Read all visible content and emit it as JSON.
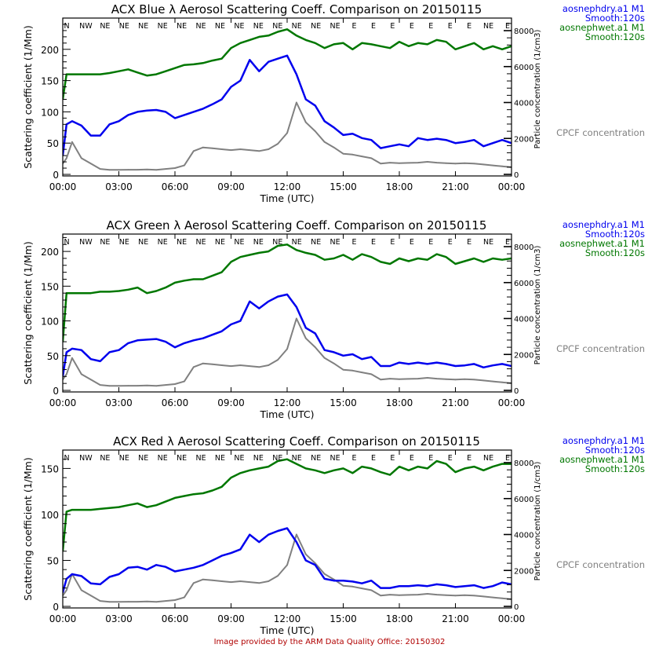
{
  "footer": "Image provided by the ARM Data Quality Office: 20150302",
  "colors": {
    "dry": "#0000ee",
    "wet": "#007700",
    "cpc": "#808080",
    "footer": "#b00000"
  },
  "chart_data": [
    {
      "type": "line",
      "title": "ACX Blue λ Aerosol Scattering Coeff. Comparison on 20150115",
      "xlabel": "Time (UTC)",
      "ylabel": "Scattering coefficient (1/Mm)",
      "y2label": "Particle concentration (1/cm3)",
      "xlim": [
        0,
        24
      ],
      "ylim": [
        0,
        250
      ],
      "y2lim": [
        0,
        8700
      ],
      "xticks": [
        "00:00",
        "03:00",
        "06:00",
        "09:00",
        "12:00",
        "15:00",
        "18:00",
        "21:00",
        "00:00"
      ],
      "yticks": [
        0,
        50,
        100,
        150,
        200
      ],
      "y2ticks": [
        0,
        2000,
        4000,
        6000,
        8000
      ],
      "wind_directions": [
        "N",
        "NW",
        "NE",
        "NE",
        "NE",
        "NE",
        "NE",
        "NE",
        "NE",
        "NE",
        "NE",
        "NE",
        "NE",
        "NE",
        "NE",
        "E",
        "E",
        "E",
        "E",
        "E",
        "E",
        "E",
        "NE",
        "E"
      ],
      "legend": [
        {
          "line1": "aosnephdry.a1 M1",
          "line2": "Smooth:120s",
          "series": "dry"
        },
        {
          "line1": "aosnephwet.a1 M1",
          "line2": "Smooth:120s",
          "series": "wet"
        },
        {
          "line1": "CPCF concentration",
          "line2": "",
          "series": "cpc"
        }
      ],
      "x": [
        0,
        0.2,
        0.5,
        1.0,
        1.5,
        2.0,
        2.5,
        3.0,
        3.5,
        4.0,
        4.5,
        5.0,
        5.5,
        6.0,
        6.5,
        7.0,
        7.5,
        8.0,
        8.5,
        9.0,
        9.5,
        10.0,
        10.5,
        11.0,
        11.5,
        12.0,
        12.5,
        13.0,
        13.5,
        14.0,
        14.5,
        15.0,
        15.5,
        16.0,
        16.5,
        17.0,
        17.5,
        18.0,
        18.5,
        19.0,
        19.5,
        20.0,
        20.5,
        21.0,
        21.5,
        22.0,
        22.5,
        23.0,
        23.5,
        24.0
      ],
      "series": [
        {
          "name": "dry",
          "label": "aosnephdry.a1 M1 Smooth:120s",
          "axis": "left",
          "values": [
            30,
            80,
            85,
            78,
            62,
            62,
            80,
            85,
            95,
            100,
            102,
            103,
            100,
            90,
            95,
            100,
            105,
            112,
            120,
            140,
            150,
            183,
            165,
            180,
            185,
            190,
            160,
            120,
            110,
            85,
            75,
            63,
            65,
            58,
            55,
            42,
            45,
            48,
            45,
            58,
            55,
            57,
            55,
            50,
            52,
            55,
            45,
            50,
            55,
            50
          ]
        },
        {
          "name": "wet",
          "label": "aosnephwet.a1 M1 Smooth:120s",
          "axis": "left",
          "values": [
            120,
            160,
            160,
            160,
            160,
            160,
            162,
            165,
            168,
            163,
            158,
            160,
            165,
            170,
            175,
            176,
            178,
            182,
            185,
            202,
            210,
            215,
            220,
            222,
            228,
            232,
            222,
            215,
            210,
            202,
            208,
            210,
            200,
            210,
            208,
            205,
            202,
            212,
            205,
            210,
            208,
            215,
            212,
            200,
            205,
            210,
            200,
            205,
            200,
            205
          ]
        },
        {
          "name": "cpc",
          "label": "CPCF concentration",
          "axis": "right",
          "values": [
            600,
            900,
            1800,
            900,
            600,
            300,
            250,
            250,
            260,
            260,
            270,
            250,
            300,
            350,
            500,
            1300,
            1500,
            1450,
            1400,
            1350,
            1400,
            1350,
            1300,
            1400,
            1700,
            2300,
            4000,
            2900,
            2400,
            1800,
            1500,
            1150,
            1100,
            1000,
            900,
            600,
            650,
            620,
            640,
            650,
            700,
            650,
            620,
            600,
            620,
            600,
            550,
            500,
            450,
            400
          ]
        }
      ]
    },
    {
      "type": "line",
      "title": "ACX Green λ Aerosol Scattering Coeff. Comparison on 20150115",
      "xlabel": "Time (UTC)",
      "ylabel": "Scattering coefficient (1/Mm)",
      "y2label": "Particle concentration (1/cm3)",
      "xlim": [
        0,
        24
      ],
      "ylim": [
        0,
        225
      ],
      "y2lim": [
        0,
        8700
      ],
      "xticks": [
        "00:00",
        "03:00",
        "06:00",
        "09:00",
        "12:00",
        "15:00",
        "18:00",
        "21:00",
        "00:00"
      ],
      "yticks": [
        0,
        50,
        100,
        150,
        200
      ],
      "y2ticks": [
        0,
        2000,
        4000,
        6000,
        8000
      ],
      "wind_directions": [
        "N",
        "NW",
        "NE",
        "NE",
        "NE",
        "NE",
        "NE",
        "NE",
        "NE",
        "NE",
        "NE",
        "NE",
        "NE",
        "NE",
        "NE",
        "E",
        "E",
        "E",
        "E",
        "E",
        "E",
        "E",
        "NE",
        "E"
      ],
      "legend": [
        {
          "line1": "aosnephdry.a1 M1",
          "line2": "Smooth:120s",
          "series": "dry"
        },
        {
          "line1": "aosnephwet.a1 M1",
          "line2": "Smooth:120s",
          "series": "wet"
        },
        {
          "line1": "CPCF concentration",
          "line2": "",
          "series": "cpc"
        }
      ],
      "x": [
        0,
        0.2,
        0.5,
        1.0,
        1.5,
        2.0,
        2.5,
        3.0,
        3.5,
        4.0,
        4.5,
        5.0,
        5.5,
        6.0,
        6.5,
        7.0,
        7.5,
        8.0,
        8.5,
        9.0,
        9.5,
        10.0,
        10.5,
        11.0,
        11.5,
        12.0,
        12.5,
        13.0,
        13.5,
        14.0,
        14.5,
        15.0,
        15.5,
        16.0,
        16.5,
        17.0,
        17.5,
        18.0,
        18.5,
        19.0,
        19.5,
        20.0,
        20.5,
        21.0,
        21.5,
        22.0,
        22.5,
        23.0,
        23.5,
        24.0
      ],
      "series": [
        {
          "name": "dry",
          "label": "aosnephdry.a1 M1 Smooth:120s",
          "axis": "left",
          "values": [
            20,
            55,
            60,
            58,
            45,
            42,
            55,
            58,
            68,
            72,
            73,
            74,
            70,
            62,
            68,
            72,
            75,
            80,
            85,
            95,
            100,
            128,
            118,
            128,
            135,
            138,
            120,
            90,
            82,
            58,
            55,
            50,
            52,
            45,
            48,
            35,
            35,
            40,
            38,
            40,
            38,
            40,
            38,
            35,
            36,
            38,
            33,
            36,
            38,
            35
          ]
        },
        {
          "name": "wet",
          "label": "aosnephwet.a1 M1 Smooth:120s",
          "axis": "left",
          "values": [
            70,
            140,
            140,
            140,
            140,
            142,
            142,
            143,
            145,
            148,
            140,
            143,
            148,
            155,
            158,
            160,
            160,
            165,
            170,
            185,
            192,
            195,
            198,
            200,
            208,
            210,
            202,
            198,
            195,
            188,
            190,
            195,
            188,
            196,
            192,
            185,
            182,
            190,
            186,
            190,
            188,
            196,
            192,
            182,
            186,
            190,
            185,
            190,
            188,
            190
          ]
        },
        {
          "name": "cpc",
          "label": "CPCF concentration",
          "axis": "right",
          "values": [
            600,
            900,
            1800,
            900,
            600,
            300,
            250,
            250,
            260,
            260,
            270,
            250,
            300,
            350,
            500,
            1300,
            1500,
            1450,
            1400,
            1350,
            1400,
            1350,
            1300,
            1400,
            1700,
            2300,
            4000,
            2900,
            2400,
            1800,
            1500,
            1150,
            1100,
            1000,
            900,
            600,
            650,
            620,
            640,
            650,
            700,
            650,
            620,
            600,
            620,
            600,
            550,
            500,
            450,
            400
          ]
        }
      ]
    },
    {
      "type": "line",
      "title": "ACX Red λ Aerosol Scattering Coeff. Comparison on 20150115",
      "xlabel": "Time (UTC)",
      "ylabel": "Scattering coefficient (1/Mm)",
      "y2label": "Particle concentration (1/cm3)",
      "xlim": [
        0,
        24
      ],
      "ylim": [
        0,
        170
      ],
      "y2lim": [
        0,
        8700
      ],
      "xticks": [
        "00:00",
        "03:00",
        "06:00",
        "09:00",
        "12:00",
        "15:00",
        "18:00",
        "21:00",
        "00:00"
      ],
      "yticks": [
        0,
        50,
        100,
        150
      ],
      "y2ticks": [
        0,
        2000,
        4000,
        6000,
        8000
      ],
      "wind_directions": [
        "N",
        "NW",
        "NE",
        "NE",
        "NE",
        "NE",
        "NE",
        "NE",
        "NE",
        "NE",
        "NE",
        "NE",
        "NE",
        "NE",
        "NE",
        "E",
        "E",
        "E",
        "E",
        "E",
        "E",
        "E",
        "NE",
        "E"
      ],
      "legend": [
        {
          "line1": "aosnephdry.a1 M1",
          "line2": "Smooth:120s",
          "series": "dry"
        },
        {
          "line1": "aosnephwet.a1 M1",
          "line2": "Smooth:120s",
          "series": "wet"
        },
        {
          "line1": "CPCF concentration",
          "line2": "",
          "series": "cpc"
        }
      ],
      "x": [
        0,
        0.2,
        0.5,
        1.0,
        1.5,
        2.0,
        2.5,
        3.0,
        3.5,
        4.0,
        4.5,
        5.0,
        5.5,
        6.0,
        6.5,
        7.0,
        7.5,
        8.0,
        8.5,
        9.0,
        9.5,
        10.0,
        10.5,
        11.0,
        11.5,
        12.0,
        12.5,
        13.0,
        13.5,
        14.0,
        14.5,
        15.0,
        15.5,
        16.0,
        16.5,
        17.0,
        17.5,
        18.0,
        18.5,
        19.0,
        19.5,
        20.0,
        20.5,
        21.0,
        21.5,
        22.0,
        22.5,
        23.0,
        23.5,
        24.0
      ],
      "series": [
        {
          "name": "dry",
          "label": "aosnephdry.a1 M1 Smooth:120s",
          "axis": "left",
          "values": [
            15,
            30,
            35,
            33,
            25,
            24,
            32,
            35,
            42,
            43,
            40,
            45,
            43,
            38,
            40,
            42,
            45,
            50,
            55,
            58,
            62,
            78,
            70,
            78,
            82,
            85,
            70,
            50,
            45,
            30,
            28,
            28,
            27,
            25,
            28,
            20,
            20,
            22,
            22,
            23,
            22,
            24,
            23,
            21,
            22,
            23,
            20,
            22,
            26,
            24
          ]
        },
        {
          "name": "wet",
          "label": "aosnephwet.a1 M1 Smooth:120s",
          "axis": "left",
          "values": [
            60,
            103,
            105,
            105,
            105,
            106,
            107,
            108,
            110,
            112,
            108,
            110,
            114,
            118,
            120,
            122,
            123,
            126,
            130,
            140,
            145,
            148,
            150,
            152,
            158,
            160,
            155,
            150,
            148,
            145,
            148,
            150,
            145,
            152,
            150,
            146,
            143,
            152,
            148,
            152,
            150,
            158,
            155,
            146,
            150,
            152,
            148,
            152,
            155,
            155
          ]
        },
        {
          "name": "cpc",
          "label": "CPCF concentration",
          "axis": "right",
          "values": [
            600,
            900,
            1800,
            900,
            600,
            300,
            250,
            250,
            260,
            260,
            270,
            250,
            300,
            350,
            500,
            1300,
            1500,
            1450,
            1400,
            1350,
            1400,
            1350,
            1300,
            1400,
            1700,
            2300,
            4000,
            2900,
            2400,
            1800,
            1500,
            1150,
            1100,
            1000,
            900,
            600,
            650,
            620,
            640,
            650,
            700,
            650,
            620,
            600,
            620,
            600,
            550,
            500,
            450,
            400
          ]
        }
      ]
    }
  ]
}
